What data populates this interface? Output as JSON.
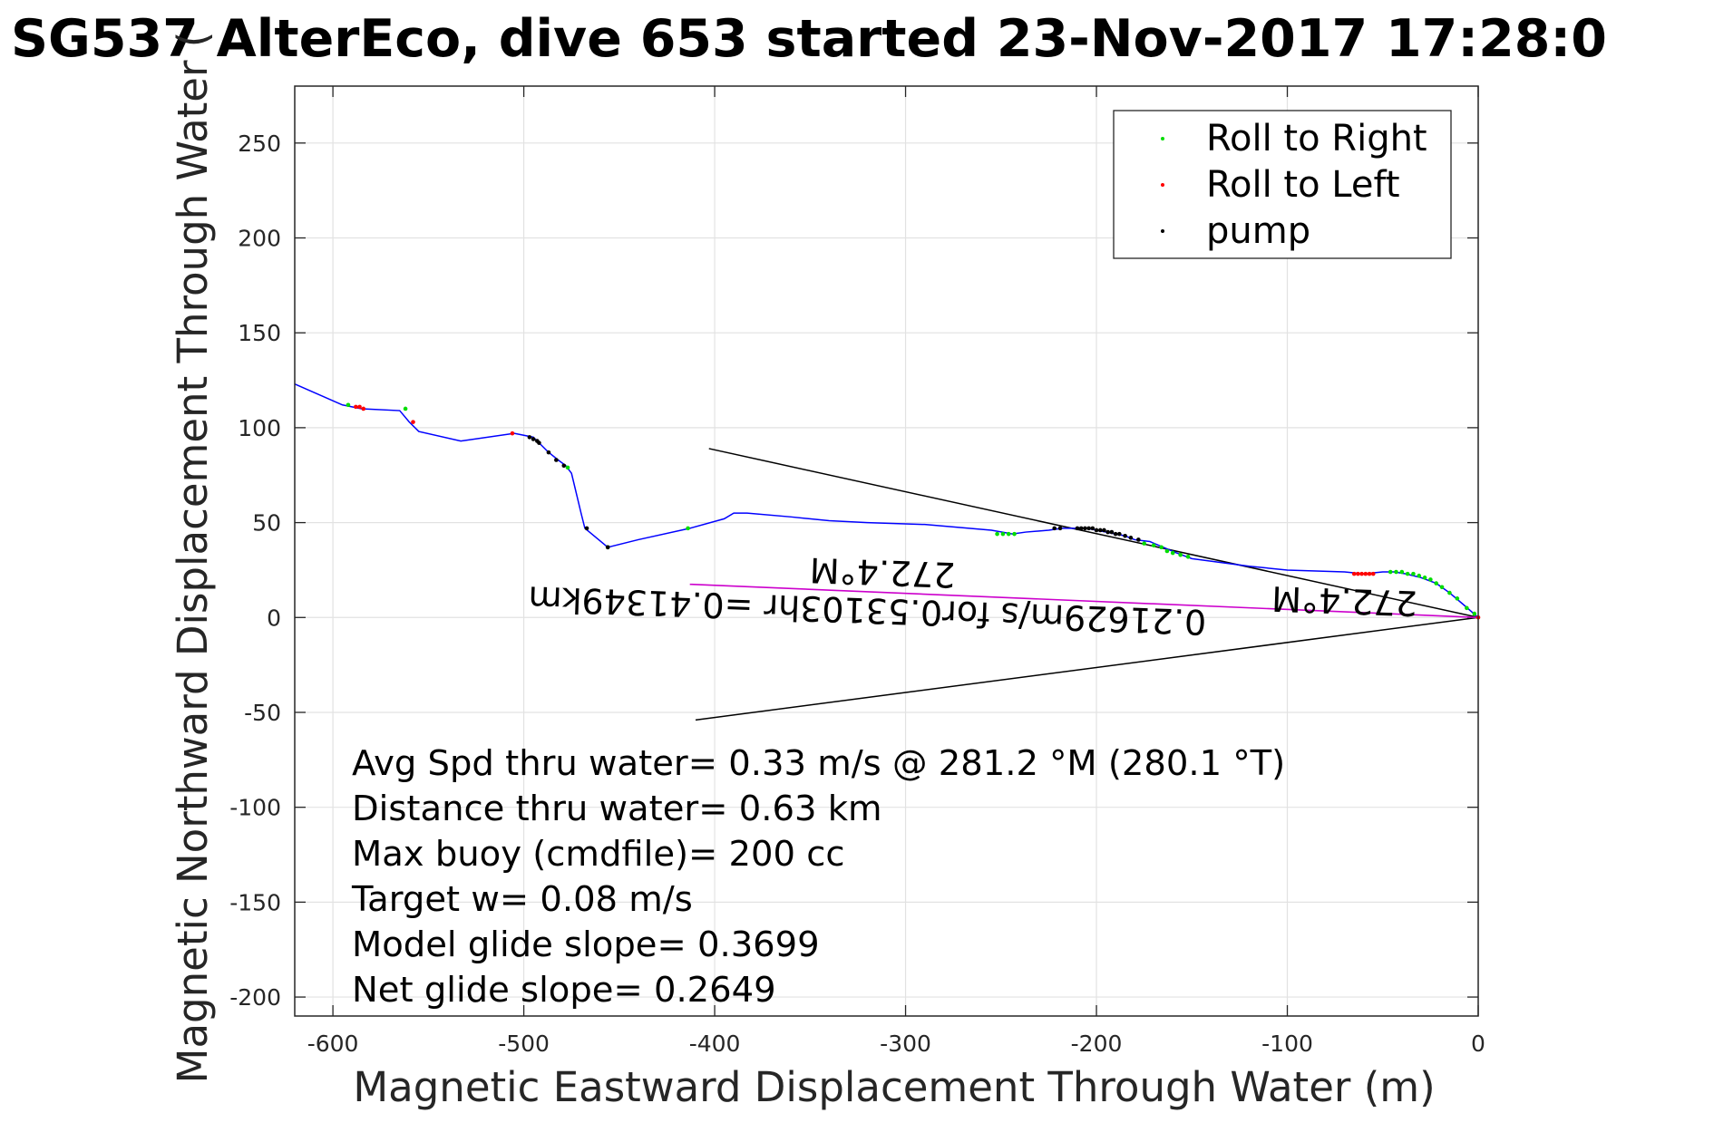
{
  "chart_data": {
    "type": "line",
    "title": "SG537 AlterEco, dive 653 started 23-Nov-2017 17:28:0",
    "xlabel": "Magnetic Eastward Displacement Through Water (m)",
    "ylabel": "Magnetic Northward Displacement Through Water (",
    "xlim": [
      -620,
      0
    ],
    "ylim": [
      -210,
      280
    ],
    "xticks": [
      -600,
      -500,
      -400,
      -300,
      -200,
      -100,
      0
    ],
    "yticks": [
      -200,
      -150,
      -100,
      -50,
      0,
      50,
      100,
      150,
      200,
      250
    ],
    "grid": true,
    "legend_position": "top-right",
    "colors": {
      "track": "#0000ff",
      "roll_right": "#00dd00",
      "roll_left": "#ff0000",
      "pump": "#000000",
      "current_vector": "#cc00cc",
      "glide_lines": "#000000"
    },
    "legend": [
      {
        "label": "Roll to Right",
        "color": "#00dd00"
      },
      {
        "label": "Roll to Left",
        "color": "#ff0000"
      },
      {
        "label": "pump",
        "color": "#000000"
      }
    ],
    "track": {
      "x": [
        -620,
        -595,
        -590,
        -585,
        -565,
        -560,
        -555,
        -533,
        -505,
        -495,
        -492,
        -487,
        -482,
        -478,
        -475,
        -470,
        -468,
        -456,
        -440,
        -413,
        -395,
        -390,
        -383,
        -360,
        -340,
        -320,
        -290,
        -255,
        -244,
        -237,
        -225,
        -218,
        -210,
        -205,
        -200,
        -195,
        -190,
        -185,
        -180,
        -172,
        -165,
        -158,
        -150,
        -120,
        -100,
        -70,
        -60,
        -50,
        -44,
        -38,
        -30,
        -22,
        -15,
        -8,
        0
      ],
      "y": [
        123,
        112,
        111,
        110,
        109,
        103,
        98,
        93,
        97,
        95,
        92,
        87,
        83,
        80,
        76,
        55,
        47,
        37,
        41,
        47,
        52,
        55,
        55,
        53,
        51,
        50,
        49,
        46,
        44,
        45,
        46,
        47,
        47,
        47,
        46,
        45,
        44,
        43,
        41,
        40,
        37,
        34,
        31,
        27,
        25,
        24,
        23,
        24,
        24,
        23,
        21,
        18,
        13,
        7,
        0
      ]
    },
    "roll_right_markers": {
      "x": [
        -592,
        -562,
        -477,
        -456,
        -414,
        -252,
        -249,
        -246,
        -243,
        -175,
        -170,
        -166,
        -163,
        -160,
        -156,
        -152,
        -46,
        -43,
        -40,
        -37,
        -34,
        -31,
        -28,
        -25,
        -22,
        -19,
        -15,
        -11,
        -6,
        -2
      ],
      "y": [
        112,
        110,
        79,
        37,
        47,
        44,
        44,
        44,
        44,
        39,
        38,
        37,
        35,
        34,
        33,
        32,
        24,
        24,
        24,
        23,
        23,
        22,
        21,
        20,
        18,
        16,
        13,
        10,
        5,
        2
      ]
    },
    "roll_left_markers": {
      "x": [
        -588,
        -586,
        -584,
        -558,
        -506,
        -65,
        -63,
        -61,
        -59,
        -57,
        -55,
        0
      ],
      "y": [
        111,
        111,
        110,
        103,
        97,
        23,
        23,
        23,
        23,
        23,
        23,
        0
      ]
    },
    "pump_markers": {
      "x": [
        -497,
        -495,
        -493,
        -492,
        -487,
        -483,
        -479,
        -467,
        -456,
        -222,
        -219,
        -210,
        -208,
        -206,
        -204,
        -202,
        -200,
        -198,
        -196,
        -194,
        -192,
        -190,
        -188,
        -185,
        -182,
        -178
      ],
      "y": [
        95,
        94,
        93,
        92,
        87,
        83,
        80,
        47,
        37,
        47,
        47,
        47,
        47,
        47,
        47,
        47,
        46,
        46,
        46,
        45,
        45,
        44,
        44,
        43,
        42,
        41
      ]
    },
    "glide_lines": [
      {
        "x": [
          0,
          -403
        ],
        "y": [
          0,
          89
        ]
      },
      {
        "x": [
          0,
          -410
        ],
        "y": [
          0,
          -54
        ]
      }
    ],
    "current_vector": {
      "x": [
        0,
        -413
      ],
      "y": [
        0,
        17.5
      ]
    },
    "flipped_annotations": [
      {
        "text": "272.4°M",
        "x": -312,
        "y": 25
      },
      {
        "text": "0.21629m/s for0.53103hr =0.41349km",
        "x": -320,
        "y": 5
      },
      {
        "text": "272.4°M",
        "x": -70,
        "y": 10
      }
    ],
    "stats_lines": [
      "Avg Spd thru water=  0.33 m/s @ 281.2 °M (280.1 °T)",
      "Distance thru water=  0.63 km",
      "Max buoy (cmdfile)= 200 cc",
      "Target w= 0.08 m/s",
      "Model glide slope= 0.3699",
      "Net glide slope= 0.2649"
    ]
  }
}
